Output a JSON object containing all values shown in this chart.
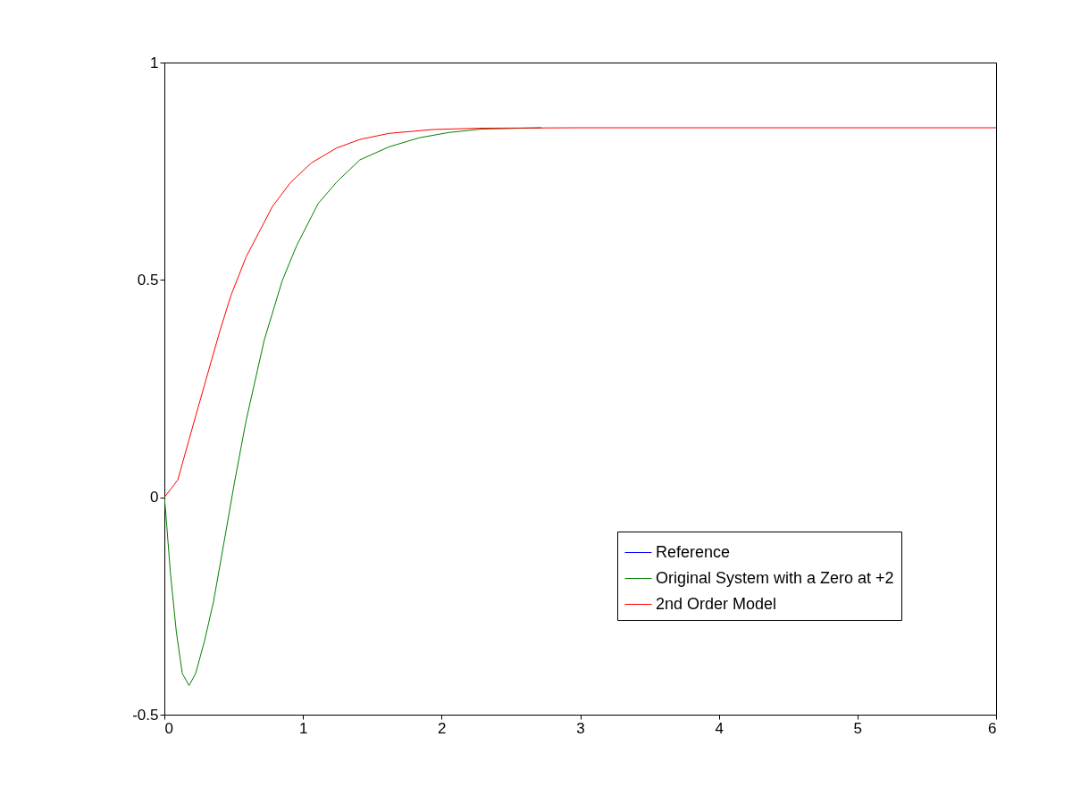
{
  "chart_data": {
    "type": "line",
    "xlim": [
      0,
      6
    ],
    "xticks": [
      0,
      1,
      2,
      3,
      4,
      5,
      6
    ],
    "ylim": [
      -0.5,
      1
    ],
    "yticks": [
      -0.5,
      0,
      0.5,
      1
    ],
    "grid": false,
    "legend": "bottom right",
    "series": [
      {
        "name": "Reference",
        "color": "#0000ff"
      },
      {
        "name": "Original System with a Zero at +2",
        "color": "#008000",
        "x": [
          0,
          0.01,
          0.043,
          0.086,
          0.129,
          0.178,
          0.226,
          0.29,
          0.354,
          0.43,
          0.505,
          0.59,
          0.72,
          0.85,
          0.956,
          1.11,
          1.24,
          1.41,
          1.62,
          1.84,
          2.05,
          2.29,
          2.72
        ],
        "values": [
          0,
          -0.035,
          -0.172,
          -0.309,
          -0.405,
          -0.433,
          -0.405,
          -0.33,
          -0.241,
          -0.104,
          0.033,
          0.177,
          0.361,
          0.498,
          0.58,
          0.676,
          0.724,
          0.776,
          0.806,
          0.827,
          0.839,
          0.847,
          0.85
        ]
      },
      {
        "name": "2nd Order Model",
        "color": "#ff0000",
        "x": [
          0,
          0.097,
          0.18,
          0.29,
          0.4,
          0.48,
          0.59,
          0.68,
          0.78,
          0.91,
          1.06,
          1.24,
          1.41,
          1.62,
          1.94,
          2.27,
          3,
          6
        ],
        "values": [
          0,
          0.04,
          0.135,
          0.259,
          0.382,
          0.464,
          0.553,
          0.608,
          0.669,
          0.724,
          0.769,
          0.803,
          0.823,
          0.837,
          0.846,
          0.849,
          0.85,
          0.85
        ]
      }
    ]
  }
}
